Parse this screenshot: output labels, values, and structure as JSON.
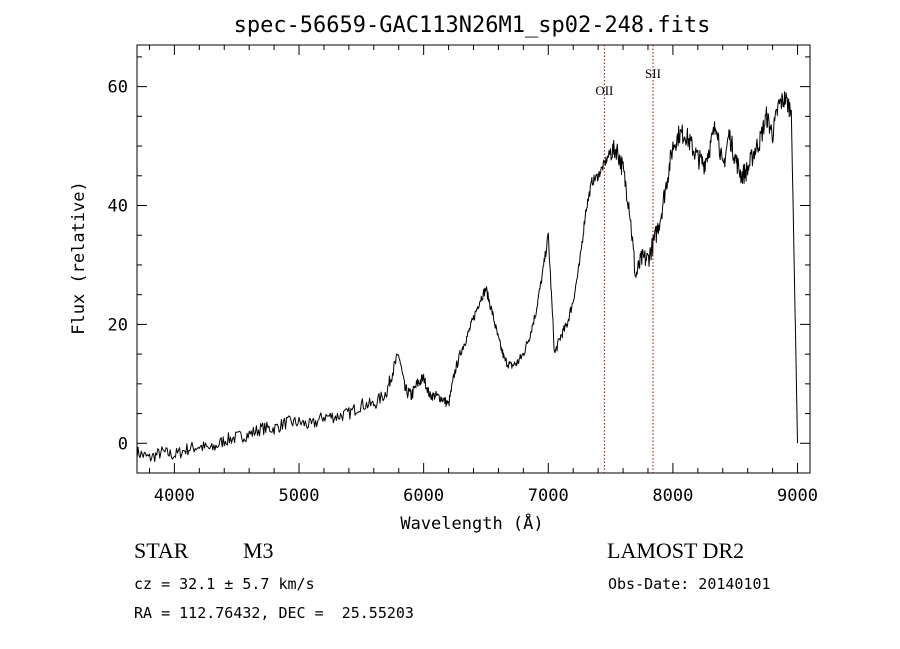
{
  "chart_data": {
    "type": "line",
    "title": "spec-56659-GAC113N26M1_sp02-248.fits",
    "xlabel": "Wavelength (Å)",
    "ylabel": "Flux (relative)",
    "xlim": [
      3700,
      9100
    ],
    "ylim": [
      -5,
      67
    ],
    "xticks": [
      4000,
      5000,
      6000,
      7000,
      8000,
      9000
    ],
    "yticks": [
      0,
      20,
      40,
      60
    ],
    "grid": false,
    "series": [
      {
        "x": [
          3700,
          3800,
          3900,
          4000,
          4100,
          4200,
          4300,
          4400,
          4500,
          4600,
          4700,
          4800,
          4900,
          5000,
          5100,
          5200,
          5300,
          5400,
          5500,
          5600,
          5700,
          5750,
          5800,
          5850,
          5900,
          5950,
          6000,
          6050,
          6100,
          6150,
          6200,
          6250,
          6300,
          6350,
          6400,
          6450,
          6500,
          6550,
          6600,
          6650,
          6700,
          6750,
          6800,
          6850,
          6900,
          6950,
          7000,
          7050,
          7100,
          7150,
          7200,
          7250,
          7300,
          7350,
          7400,
          7450,
          7500,
          7550,
          7600,
          7650,
          7700,
          7750,
          7800,
          7850,
          7900,
          7950,
          8000,
          8050,
          8100,
          8150,
          8200,
          8250,
          8300,
          8350,
          8400,
          8450,
          8500,
          8550,
          8600,
          8650,
          8700,
          8750,
          8800,
          8850,
          8900,
          8950,
          9000
        ],
        "values": [
          -1.5,
          -2.5,
          -1.5,
          -2,
          -1,
          -0.5,
          -1,
          0.5,
          1,
          1.5,
          2.5,
          2.5,
          3.5,
          3.5,
          3,
          4.5,
          4.5,
          5,
          6.5,
          6.5,
          8.5,
          12,
          15,
          9,
          8,
          10,
          11,
          8,
          8,
          7.5,
          6.5,
          12,
          15.5,
          18,
          21,
          24,
          26,
          22,
          17.5,
          14,
          13,
          13.5,
          15,
          18,
          22,
          28,
          35,
          15,
          18,
          20,
          24,
          30,
          39,
          44,
          45,
          47,
          49,
          49.5,
          46,
          40,
          28,
          31,
          31,
          34,
          38,
          44,
          50,
          52,
          52,
          50,
          48,
          47,
          50,
          54,
          46,
          52,
          48,
          45,
          46,
          49,
          51,
          55,
          52,
          57,
          58,
          56,
          0
        ]
      }
    ],
    "annotations": [
      "OII",
      "SII"
    ],
    "annotation_x": [
      7450,
      7840
    ]
  },
  "info": {
    "class_label": "STAR",
    "subclass": "M3",
    "survey": "LAMOST DR2",
    "cz": "cz = 32.1 ± 5.7 km/s",
    "obs_date": "Obs-Date: 20140101",
    "coords": "RA = 112.76432, DEC =  25.55203"
  }
}
